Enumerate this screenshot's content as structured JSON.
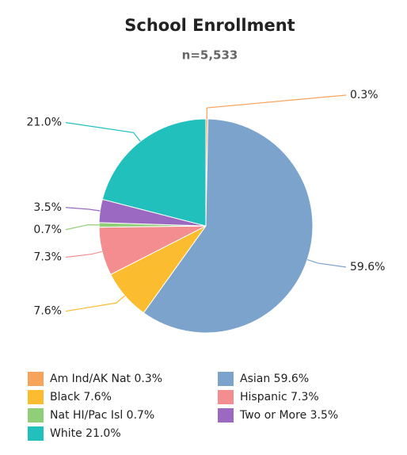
{
  "chart_data": {
    "type": "pie",
    "title": "School Enrollment",
    "subtitle": "n=5,533",
    "categories": [
      "Am Ind/AK Nat",
      "Asian",
      "Black",
      "Hispanic",
      "Nat HI/Pac Isl",
      "Two or More",
      "White"
    ],
    "values": [
      0.3,
      59.6,
      7.6,
      7.3,
      0.7,
      3.5,
      21.0
    ],
    "value_labels": [
      "0.3%",
      "59.6%",
      "7.6%",
      "7.3%",
      "0.7%",
      "3.5%",
      "21.0%"
    ],
    "colors": [
      "#f7a35c",
      "#7ba3cc",
      "#fbbd2f",
      "#f48d8f",
      "#90cf78",
      "#9b69c1",
      "#22c0bd"
    ]
  }
}
